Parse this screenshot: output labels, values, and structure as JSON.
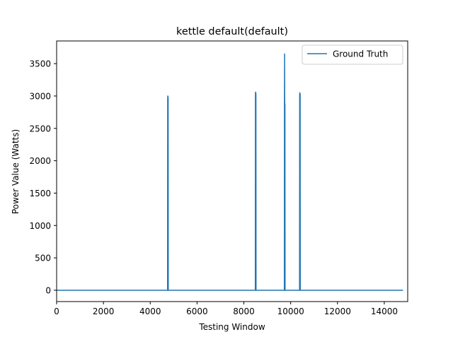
{
  "chart_data": {
    "type": "line",
    "title": "kettle default(default)",
    "xlabel": "Testing Window",
    "ylabel": "Power Value (Watts)",
    "xlim": [
      0,
      15000
    ],
    "ylim": [
      -175,
      3850
    ],
    "xticks": [
      0,
      2000,
      4000,
      6000,
      8000,
      10000,
      12000,
      14000
    ],
    "yticks": [
      0,
      500,
      1000,
      1500,
      2000,
      2500,
      3000,
      3500
    ],
    "grid": false,
    "legend_position": "upper right",
    "series": [
      {
        "name": "Ground Truth",
        "color": "#1f77b4",
        "x": [
          0,
          4740,
          4745,
          4750,
          4755,
          4760,
          4765,
          4770,
          8490,
          8495,
          8500,
          8505,
          8510,
          8515,
          8520,
          9730,
          9735,
          9740,
          9745,
          9750,
          9755,
          9760,
          10380,
          10385,
          10390,
          10395,
          10400,
          10405,
          10410,
          14800
        ],
        "y": [
          0,
          0,
          2950,
          3000,
          2960,
          2990,
          2950,
          0,
          0,
          3030,
          3060,
          3000,
          3050,
          3020,
          0,
          0,
          2880,
          3650,
          2900,
          2880,
          2860,
          0,
          0,
          3020,
          3050,
          3010,
          3040,
          3020,
          0,
          0
        ]
      }
    ]
  }
}
